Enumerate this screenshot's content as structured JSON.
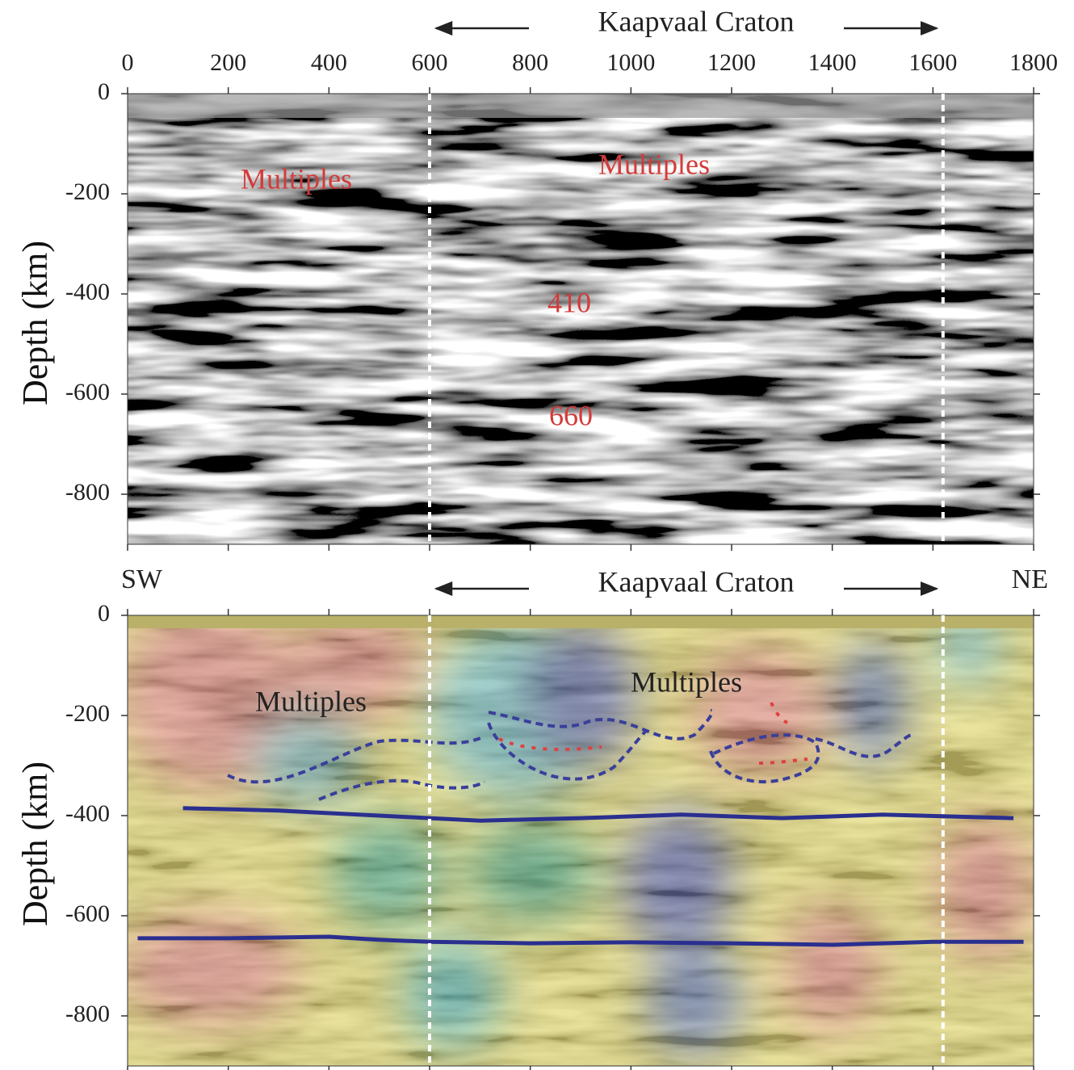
{
  "chart_data": [
    {
      "type": "image",
      "title": "Kaapvaal Craton",
      "ylabel": "Depth (km)",
      "xlim": [
        0,
        1800
      ],
      "ylim": [
        -900,
        0
      ],
      "xticks": [
        0,
        200,
        400,
        600,
        800,
        1000,
        1200,
        1400,
        1600,
        1800
      ],
      "yticks": [
        0,
        -200,
        -400,
        -600,
        -800
      ],
      "vlines": [
        600,
        1620
      ],
      "annotations": [
        "Multiples",
        "Multiples",
        "410",
        "660"
      ]
    },
    {
      "type": "image",
      "title": "Kaapvaal Craton",
      "ylabel": "Depth (km)",
      "left_label": "SW",
      "right_label": "NE",
      "xlim": [
        0,
        1800
      ],
      "ylim": [
        -900,
        0
      ],
      "yticks": [
        0,
        -200,
        -400,
        -600,
        -800
      ],
      "vlines": [
        600,
        1620
      ],
      "annotations": [
        "Multiples",
        "Multiples"
      ],
      "lines": [
        {
          "color": "#2a2f8f",
          "x": [
            110,
            300,
            500,
            600,
            700,
            900,
            1100,
            1300,
            1500,
            1760
          ],
          "values": [
            -385,
            -390,
            -400,
            -405,
            -410,
            -405,
            -398,
            -405,
            -398,
            -405
          ]
        },
        {
          "color": "#2a2f8f",
          "x": [
            20,
            200,
            400,
            500,
            600,
            800,
            1000,
            1200,
            1400,
            1600,
            1780
          ],
          "values": [
            -645,
            -645,
            -642,
            -648,
            -652,
            -655,
            -653,
            -655,
            -658,
            -652,
            -652
          ]
        }
      ]
    }
  ]
}
